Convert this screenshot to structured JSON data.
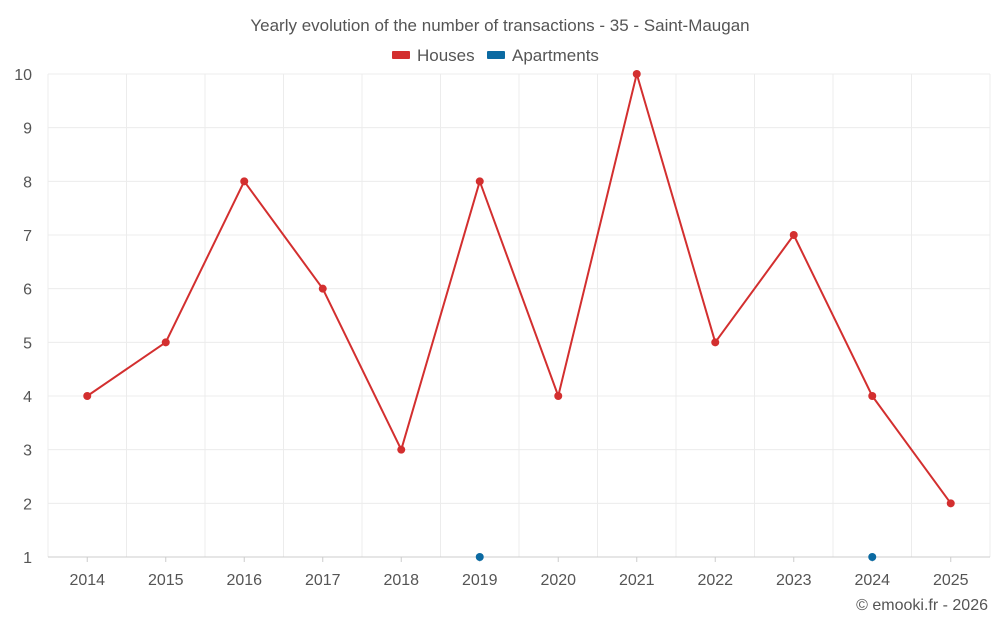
{
  "chart_data": {
    "type": "line",
    "title": "Yearly evolution of the number of transactions - 35 - Saint-Maugan",
    "categories": [
      "2014",
      "2015",
      "2016",
      "2017",
      "2018",
      "2019",
      "2020",
      "2021",
      "2022",
      "2023",
      "2024",
      "2025"
    ],
    "ylim": [
      1,
      10
    ],
    "yticks": [
      "1",
      "2",
      "3",
      "4",
      "5",
      "6",
      "7",
      "8",
      "9",
      "10"
    ],
    "legend_position": "top-center",
    "grid": true,
    "series": [
      {
        "name": "Houses",
        "color": "#d32f2f",
        "values": [
          4,
          5,
          8,
          6,
          3,
          8,
          4,
          10,
          5,
          7,
          4,
          2
        ]
      },
      {
        "name": "Apartments",
        "color": "#0b6aa2",
        "values": [
          null,
          null,
          null,
          null,
          null,
          1,
          null,
          null,
          null,
          null,
          1,
          null
        ]
      }
    ],
    "credit": "© emooki.fr - 2026"
  }
}
